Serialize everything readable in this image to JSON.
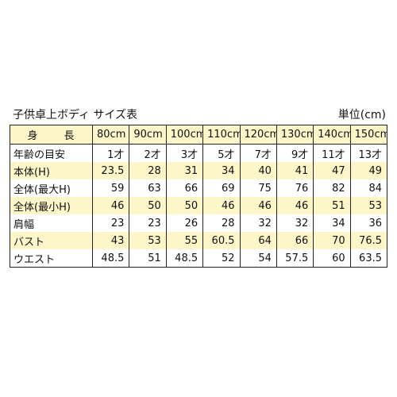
{
  "title": "子供卓上ボディ サイズ表",
  "unit": "単位(cm)",
  "table": {
    "corner_label": "身　長",
    "columns": [
      "80cm",
      "90cm",
      "100cm",
      "110cm",
      "120cm",
      "130cm",
      "140cm",
      "150cm"
    ],
    "rows": [
      {
        "label": "年齢の目安",
        "shaded": false,
        "values": [
          "1才",
          "2才",
          "3才",
          "5才",
          "7才",
          "9才",
          "11才",
          "13才"
        ]
      },
      {
        "label": "本体(H)",
        "shaded": true,
        "values": [
          "23.5",
          "28",
          "31",
          "34",
          "40",
          "41",
          "47",
          "49"
        ]
      },
      {
        "label": "全体(最大H)",
        "shaded": false,
        "values": [
          "59",
          "63",
          "66",
          "69",
          "75",
          "76",
          "82",
          "84"
        ]
      },
      {
        "label": "全体(最小H)",
        "shaded": true,
        "values": [
          "46",
          "50",
          "50",
          "46",
          "46",
          "46",
          "51",
          "53"
        ]
      },
      {
        "label": "肩幅",
        "shaded": false,
        "values": [
          "23",
          "23",
          "26",
          "28",
          "32",
          "32",
          "34",
          "36"
        ]
      },
      {
        "label": "バスト",
        "shaded": true,
        "values": [
          "43",
          "53",
          "55",
          "60.5",
          "64",
          "66",
          "70",
          "76.5"
        ]
      },
      {
        "label": "ウエスト",
        "shaded": false,
        "values": [
          "48.5",
          "51",
          "48.5",
          "52",
          "54",
          "57.5",
          "60",
          "63.5"
        ]
      }
    ]
  },
  "colors": {
    "shade": "#fdf6c8",
    "border": "#222222"
  }
}
